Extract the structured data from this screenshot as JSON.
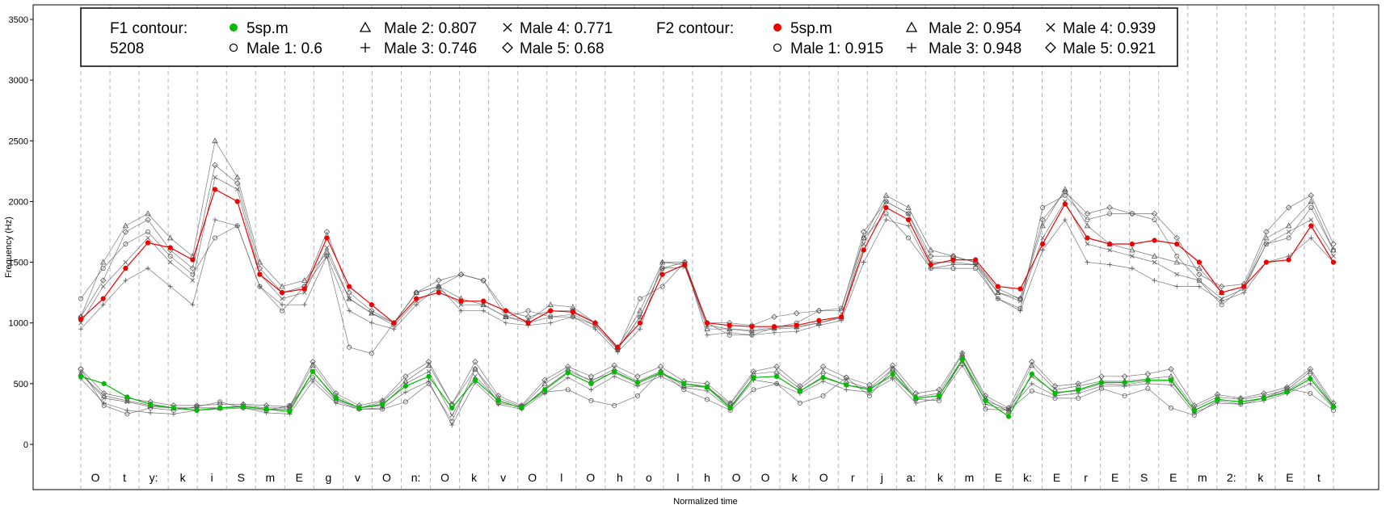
{
  "chart_data": {
    "type": "line",
    "xlabel": "Normalized time",
    "ylabel": "Frequency (Hz)",
    "ylim": [
      0,
      3500
    ],
    "yticks": [
      0,
      500,
      1000,
      1500,
      2000,
      2500,
      3000,
      3500
    ],
    "grid": "vertical dashed segment boundaries",
    "legend_position": "top-left",
    "segments": [
      "O",
      "t",
      "y:",
      "k",
      "i",
      "S",
      "m",
      "E",
      "g",
      "v",
      "O",
      "n:",
      "O",
      "k",
      "v",
      "O",
      "l",
      "O",
      "h",
      "o",
      "l",
      "h",
      "O",
      "O",
      "k",
      "O",
      "r",
      "j",
      "a:",
      "k",
      "m",
      "E",
      "k:",
      "E",
      "r",
      "E",
      "S",
      "E",
      "m",
      "2:",
      "k",
      "E",
      "t"
    ],
    "legend": {
      "f1_title": "F1 contour:",
      "f1_title_2": "5208",
      "f2_title": "F2 contour:",
      "f1_entries": [
        {
          "marker": "filled-green-circle",
          "label": "5sp.m"
        },
        {
          "marker": "triangle",
          "label": "Male 2: 0.807"
        },
        {
          "marker": "x",
          "label": "Male 4: 0.771"
        },
        {
          "marker": "open-circle",
          "label": "Male 1: 0.6"
        },
        {
          "marker": "plus",
          "label": "Male 3: 0.746"
        },
        {
          "marker": "diamond",
          "label": "Male 5: 0.68"
        }
      ],
      "f2_entries": [
        {
          "marker": "filled-red-circle",
          "label": "5sp.m"
        },
        {
          "marker": "triangle",
          "label": "Male 2: 0.954"
        },
        {
          "marker": "x",
          "label": "Male 4: 0.939"
        },
        {
          "marker": "open-circle",
          "label": "Male 1: 0.915"
        },
        {
          "marker": "plus",
          "label": "Male 3: 0.948"
        },
        {
          "marker": "diamond",
          "label": "Male 5: 0.921"
        }
      ]
    },
    "colors": {
      "f1": "#00bb00",
      "f2": "#ee0000",
      "speaker": "#555555"
    },
    "f1_series": {
      "5sp.m": [
        560,
        500,
        390,
        330,
        300,
        280,
        300,
        310,
        290,
        270,
        600,
        380,
        300,
        330,
        480,
        560,
        300,
        530,
        360,
        300,
        450,
        590,
        500,
        600,
        510,
        590,
        500,
        470,
        300,
        550,
        560,
        440,
        550,
        490,
        450,
        580,
        380,
        400,
        700,
        360,
        230,
        580,
        420,
        450,
        510,
        510,
        530,
        530,
        280,
        370,
        350,
        380,
        430,
        540,
        310
      ],
      "Male 1": [
        620,
        320,
        250,
        300,
        280,
        310,
        350,
        300,
        280,
        320,
        550,
        360,
        290,
        290,
        350,
        500,
        190,
        620,
        340,
        310,
        430,
        450,
        360,
        320,
        400,
        600,
        450,
        370,
        280,
        450,
        500,
        340,
        400,
        550,
        400,
        620,
        370,
        360,
        700,
        290,
        280,
        440,
        380,
        380,
        460,
        400,
        460,
        300,
        240,
        360,
        330,
        380,
        460,
        420,
        280
      ],
      "Male 2": [
        580,
        400,
        360,
        320,
        300,
        300,
        300,
        320,
        300,
        300,
        650,
        400,
        300,
        350,
        520,
        650,
        330,
        620,
        380,
        310,
        500,
        620,
        520,
        620,
        520,
        600,
        480,
        470,
        330,
        580,
        600,
        460,
        600,
        520,
        460,
        620,
        390,
        420,
        740,
        380,
        270,
        650,
        450,
        480,
        520,
        520,
        540,
        560,
        300,
        390,
        370,
        400,
        450,
        600,
        320
      ],
      "Male 3": [
        540,
        340,
        280,
        260,
        250,
        280,
        290,
        300,
        260,
        250,
        520,
        340,
        290,
        300,
        430,
        520,
        160,
        510,
        330,
        290,
        420,
        550,
        450,
        560,
        480,
        560,
        470,
        440,
        290,
        530,
        500,
        420,
        520,
        450,
        430,
        540,
        340,
        380,
        650,
        330,
        280,
        500,
        400,
        420,
        480,
        480,
        500,
        490,
        260,
        340,
        330,
        360,
        420,
        500,
        300
      ],
      "Male 4": [
        580,
        380,
        350,
        310,
        300,
        300,
        300,
        310,
        290,
        290,
        600,
        370,
        300,
        320,
        500,
        600,
        240,
        560,
        360,
        300,
        460,
        600,
        530,
        590,
        500,
        580,
        500,
        480,
        310,
        550,
        560,
        440,
        560,
        490,
        460,
        560,
        380,
        400,
        680,
        360,
        290,
        560,
        430,
        440,
        500,
        490,
        520,
        520,
        280,
        370,
        350,
        380,
        440,
        560,
        320
      ],
      "Male 5": [
        620,
        420,
        380,
        350,
        320,
        320,
        330,
        330,
        320,
        310,
        680,
        420,
        320,
        360,
        560,
        680,
        330,
        680,
        400,
        320,
        530,
        640,
        560,
        650,
        560,
        640,
        520,
        500,
        340,
        600,
        640,
        480,
        640,
        550,
        490,
        650,
        420,
        450,
        750,
        400,
        300,
        680,
        480,
        500,
        560,
        560,
        580,
        620,
        320,
        410,
        380,
        420,
        470,
        620,
        340
      ]
    },
    "f2_series": {
      "5sp.m": [
        1030,
        1200,
        1450,
        1660,
        1620,
        1520,
        2100,
        2000,
        1400,
        1250,
        1280,
        1700,
        1300,
        1150,
        1000,
        1200,
        1250,
        1180,
        1180,
        1100,
        1000,
        1100,
        1090,
        1000,
        800,
        1000,
        1400,
        1480,
        1000,
        980,
        970,
        970,
        980,
        1020,
        1050,
        1600,
        1950,
        1850,
        1480,
        1520,
        1520,
        1300,
        1280,
        1650,
        1980,
        1700,
        1650,
        1650,
        1680,
        1650,
        1500,
        1250,
        1300,
        1500,
        1520,
        1800,
        1500
      ],
      "Male 1": [
        1200,
        1450,
        1650,
        1750,
        1550,
        1400,
        1700,
        1800,
        1300,
        1100,
        1300,
        1550,
        800,
        750,
        1000,
        1250,
        1300,
        1400,
        1350,
        1050,
        1100,
        1050,
        1050,
        980,
        780,
        1200,
        1300,
        1500,
        1000,
        900,
        900,
        960,
        1000,
        1100,
        1120,
        1700,
        1900,
        1700,
        1450,
        1450,
        1450,
        1200,
        1120,
        1950,
        2050,
        1850,
        1900,
        1900,
        1850,
        1550,
        1350,
        1150,
        1300,
        1650,
        1700,
        1950,
        1600
      ],
      "Male 2": [
        1050,
        1500,
        1800,
        1900,
        1700,
        1550,
        2500,
        2200,
        1500,
        1300,
        1350,
        1580,
        1200,
        1080,
        1000,
        1250,
        1300,
        1200,
        1150,
        1050,
        1020,
        1150,
        1130,
        1000,
        800,
        1100,
        1500,
        1480,
        950,
        950,
        940,
        960,
        970,
        1000,
        1050,
        1700,
        2050,
        1950,
        1600,
        1550,
        1500,
        1250,
        1200,
        1800,
        2100,
        1800,
        1650,
        1600,
        1550,
        1500,
        1450,
        1250,
        1300,
        1700,
        1800,
        2000,
        1600
      ],
      "Male 3": [
        950,
        1150,
        1350,
        1450,
        1300,
        1150,
        1850,
        1800,
        1300,
        1150,
        1150,
        1550,
        1100,
        1000,
        950,
        1150,
        1300,
        1100,
        1100,
        1000,
        980,
        1000,
        1050,
        950,
        760,
        950,
        1500,
        1500,
        900,
        920,
        900,
        920,
        930,
        980,
        1020,
        1500,
        1850,
        1800,
        1450,
        1480,
        1480,
        1200,
        1100,
        1600,
        1850,
        1500,
        1480,
        1450,
        1350,
        1300,
        1300,
        1180,
        1250,
        1500,
        1550,
        1700,
        1500
      ],
      "Male 4": [
        1000,
        1300,
        1500,
        1700,
        1500,
        1350,
        2200,
        2100,
        1400,
        1200,
        1250,
        1620,
        1200,
        1080,
        980,
        1180,
        1280,
        1150,
        1150,
        1050,
        1000,
        1050,
        1070,
        980,
        780,
        1050,
        1450,
        1460,
        980,
        950,
        930,
        950,
        960,
        1000,
        1040,
        1650,
        2000,
        1900,
        1500,
        1500,
        1480,
        1250,
        1180,
        1700,
        2000,
        1650,
        1600,
        1550,
        1500,
        1400,
        1350,
        1200,
        1280,
        1650,
        1750,
        1850,
        1550
      ],
      "Male 5": [
        1050,
        1350,
        1750,
        1850,
        1600,
        1450,
        2300,
        2150,
        1450,
        1250,
        1300,
        1750,
        1250,
        1100,
        1000,
        1250,
        1350,
        1400,
        1350,
        1100,
        1050,
        1100,
        1100,
        1000,
        790,
        1050,
        1450,
        1500,
        1000,
        1000,
        980,
        1050,
        1080,
        1100,
        1100,
        1750,
        2000,
        1900,
        1550,
        1550,
        1500,
        1280,
        1200,
        1850,
        2080,
        1900,
        1950,
        1900,
        1900,
        1700,
        1400,
        1300,
        1320,
        1750,
        1950,
        2050,
        1650
      ]
    }
  }
}
